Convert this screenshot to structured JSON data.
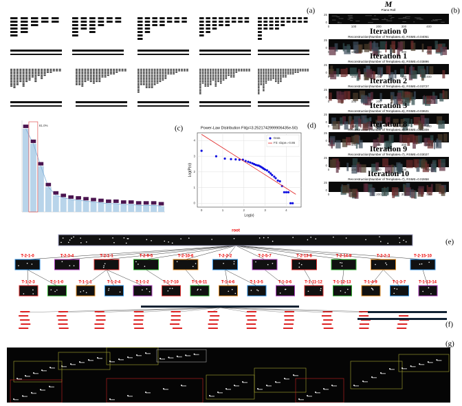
{
  "labels": {
    "a": "(a)",
    "b": "(b)",
    "c": "(c)",
    "d": "(d)",
    "e": "(e)",
    "f": "(f)",
    "g": "(g)"
  },
  "piano_roll": {
    "title": "M",
    "subtitle": "Piano Roll",
    "yticks": [
      0,
      25
    ],
    "xticks": [
      0,
      100,
      200,
      300,
      400
    ],
    "ellipsis": "⋮",
    "iterations": [
      {
        "title": "Iteration 0",
        "caption": "Reconstruction(Number of Templates=6), RSME=0.04051"
      },
      {
        "title": "Iteration 1",
        "caption": "Reconstruction(Number of Templates=6), RSME=0.03896"
      },
      {
        "title": "Iteration 2",
        "caption": "Reconstruction(Number of Templates=6), RSME=0.03727"
      },
      {
        "title": "Iteration 3",
        "caption": "Reconstruction(Number of Templates=6), RSME=0.03621"
      },
      {
        "title": "Iteration 8",
        "caption": "Reconstruction(Number of Templates=8), RSME=0.03309"
      },
      {
        "title": "Iteration 9",
        "caption": "Reconstruction(Number of Templates=7), RSME=0.03027"
      },
      {
        "title": "Iteration 10",
        "caption": "Reconstruction(Number of Templates=7), RSME=0.02858"
      }
    ]
  },
  "bar_panel": {
    "values": [
      100,
      82,
      55,
      30,
      20,
      17,
      15,
      14,
      13,
      12,
      11,
      10,
      10,
      9,
      9,
      8,
      8,
      8,
      7
    ],
    "ylim": [
      0,
      110
    ],
    "annotation": "81.0%"
  },
  "power_law": {
    "title": "Power-Law Distribution Fit(p=3.2521742999906435e-50)",
    "xlabel": "Log(x)",
    "ylabel": "Log(P(x))",
    "xlim": [
      -0.2,
      4.7
    ],
    "ylim": [
      -0.25,
      4.5
    ],
    "xticks": [
      0,
      1,
      2,
      3,
      4
    ],
    "yticks": [
      0,
      1,
      2,
      3,
      4
    ],
    "x": [
      0,
      0.69,
      1.1,
      1.39,
      1.61,
      1.79,
      1.95,
      2.08,
      2.2,
      2.3,
      2.4,
      2.48,
      2.56,
      2.64,
      2.7,
      2.77,
      2.83,
      2.89,
      2.94,
      3.0,
      3.09,
      3.18,
      3.26,
      3.33,
      3.43,
      3.5,
      3.6,
      3.7,
      3.8,
      3.9,
      4.0,
      4.1,
      4.2,
      4.3
    ],
    "y": [
      3.35,
      3.0,
      2.85,
      2.82,
      2.8,
      2.78,
      2.78,
      2.7,
      2.65,
      2.6,
      2.55,
      2.5,
      2.45,
      2.42,
      2.4,
      2.35,
      2.3,
      2.25,
      2.2,
      2.15,
      2.1,
      2.0,
      1.9,
      1.8,
      1.7,
      1.6,
      1.45,
      1.4,
      1.1,
      0.7,
      0.7,
      0.7,
      0,
      0
    ],
    "fit_x": [
      0,
      4.45
    ],
    "fit_y": [
      4.4,
      0.57
    ],
    "legend": [
      "Data",
      "Fit: slope=-0.86"
    ]
  },
  "tree": {
    "root": "root",
    "level1": [
      "T-2-1-0",
      "T-2-3-4",
      "T-2-1-1",
      "T-2-9-5",
      "T-2-10-6",
      "T-2-2-2",
      "T-2-5-7",
      "T-2-13-8",
      "T-2-14-9",
      "T-2-2-3",
      "T-2-15-10"
    ],
    "level2": [
      "T-1-2-3",
      "T-1-1-0",
      "T-1-1-1",
      "T-1-2-4",
      "T-1-1-2",
      "T-1-7-10",
      "T-1-8-11",
      "T-1-4-6",
      "T-1-3-5",
      "T-1-3-6",
      "T-1-11-12",
      "T-1-12-13",
      "T-1-4-9",
      "T-1-3-7",
      "T-1-13-14"
    ]
  }
}
